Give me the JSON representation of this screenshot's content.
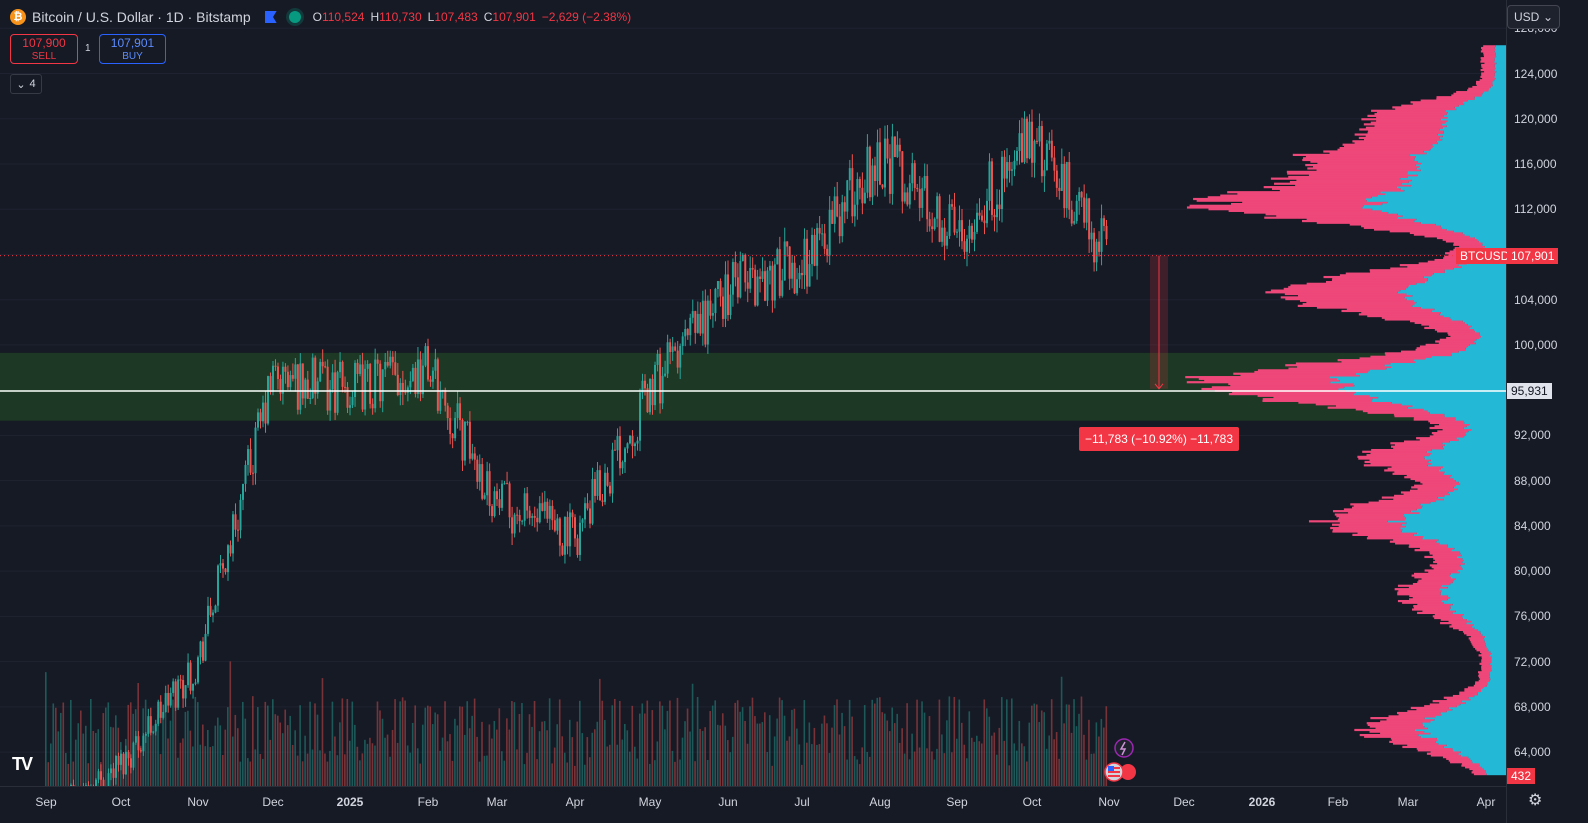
{
  "header": {
    "symbol_icon": "bitcoin-icon",
    "title": "Bitcoin / U.S. Dollar · 1D · Bitstamp",
    "open_label": "O",
    "open": "110,524",
    "high_label": "H",
    "high": "110,730",
    "low_label": "L",
    "low": "107,483",
    "close_label": "C",
    "close": "107,901",
    "change": "−2,629 (−2.38%)"
  },
  "trade": {
    "sell_price": "107,900",
    "sell_label": "SELL",
    "buy_price": "107,901",
    "buy_label": "BUY",
    "spread": "1"
  },
  "indicators_collapsed_count": "4",
  "currency_select": "USD",
  "price_axis": {
    "ticks": [
      "128,000",
      "124,000",
      "120,000",
      "116,000",
      "112,000",
      "108,000",
      "104,000",
      "100,000",
      "96,000",
      "92,000",
      "88,000",
      "84,000",
      "80,000",
      "76,000",
      "72,000",
      "68,000",
      "64,000"
    ],
    "last_symbol_tag": "BTCUSD",
    "last_price_tag": "107,901",
    "cursor_price": "95,931",
    "volume_tag": "432"
  },
  "measure_label": "−11,783 (−10.92%) −11,783",
  "time_axis": [
    "Sep",
    "Oct",
    "Nov",
    "Dec",
    "2025",
    "Feb",
    "Mar",
    "Apr",
    "May",
    "Jun",
    "Jul",
    "Aug",
    "Sep",
    "Oct",
    "Nov",
    "Dec",
    "2026",
    "Feb",
    "Mar",
    "Apr"
  ],
  "colors": {
    "background": "#161a25",
    "up": "#26a69a",
    "down": "#ef5350",
    "zone": "#1e3a25",
    "vp_up": "#22b8d6",
    "vp_down": "#ee4779"
  },
  "chart_data": {
    "type": "candlestick",
    "symbol": "BTCUSD",
    "interval": "1D",
    "ylim": [
      61000,
      130500
    ],
    "support_zone": [
      93300,
      99300
    ],
    "horizontal_line": 95931,
    "last_price": 107901,
    "measure": {
      "from": 107901,
      "to": 96118,
      "change": -11783,
      "change_pct": -10.92
    },
    "monthly_path": [
      {
        "month": "Sep 2024",
        "price": 58000
      },
      {
        "month": "Oct 2024",
        "price": 63000
      },
      {
        "month": "Nov 2024",
        "price": 72000
      },
      {
        "month": "Dec 2024",
        "price": 97000
      },
      {
        "month": "Jan 2025",
        "price": 96000
      },
      {
        "month": "Feb 2025",
        "price": 98000
      },
      {
        "month": "Mar 2025",
        "price": 86000
      },
      {
        "month": "Apr 2025",
        "price": 83000
      },
      {
        "month": "May 2025",
        "price": 96000
      },
      {
        "month": "Jun 2025",
        "price": 105000
      },
      {
        "month": "Jul 2025",
        "price": 107000
      },
      {
        "month": "Aug 2025",
        "price": 117000
      },
      {
        "month": "Sep 2025",
        "price": 110000
      },
      {
        "month": "Oct 2025",
        "price": 118000
      },
      {
        "month": "Nov 2025",
        "price": 107901
      }
    ]
  }
}
